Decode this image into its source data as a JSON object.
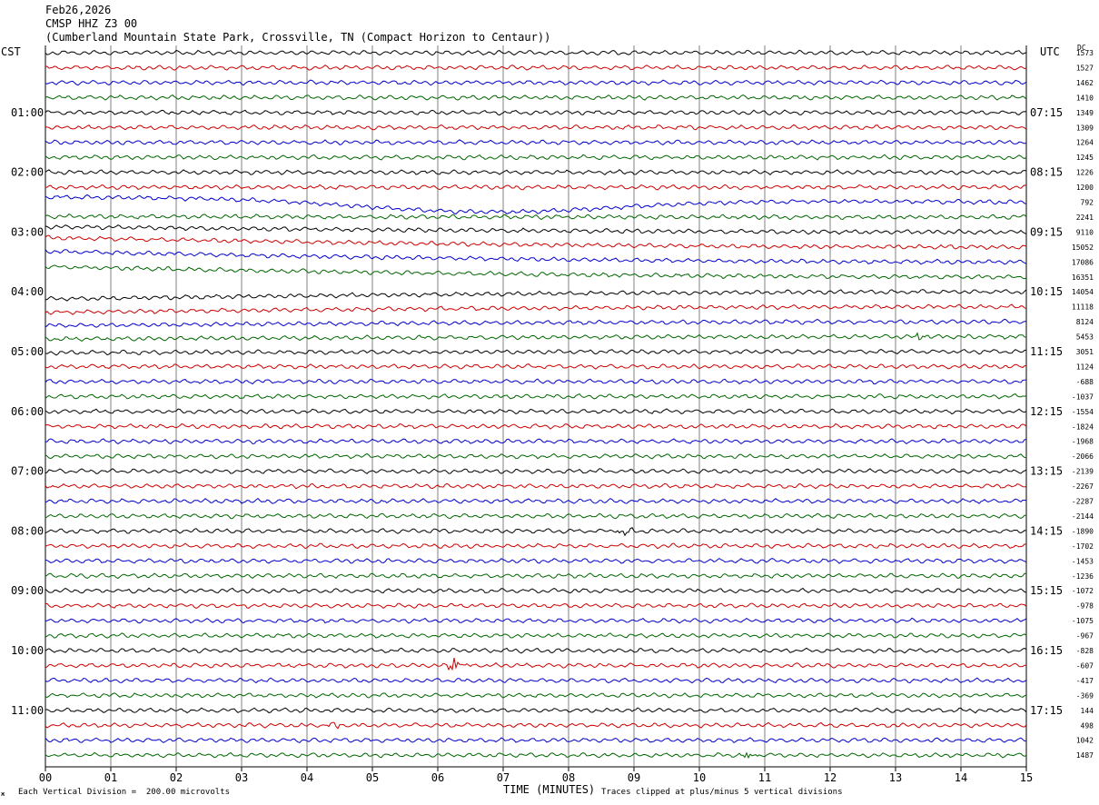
{
  "header": {
    "date": "Feb26,2026",
    "station": "CMSP HHZ Z3 00",
    "location": "(Cumberland Mountain State Park, Crossville, TN (Compact Horizon to Centaur))"
  },
  "labels": {
    "left_zone": "CST",
    "right_zone": "UTC",
    "dc_header": "DC"
  },
  "footer": {
    "scale_note": "Each Vertical Division =  200.00 microvolts",
    "x_axis_title": "TIME (MINUTES)",
    "clip_note": "Traces clipped at plus/minus 5 vertical divisions",
    "logo_mark": "ж"
  },
  "colors": {
    "trace_cycle": [
      "#000000",
      "#cc0000",
      "#0000cc",
      "#006600"
    ],
    "grid": "#808080",
    "axis": "#000000"
  },
  "chart_data": {
    "type": "line",
    "title": "CMSP HHZ Z3 00",
    "xlabel": "TIME (MINUTES)",
    "xlim": [
      0,
      15
    ],
    "x_ticks": [
      "00",
      "01",
      "02",
      "03",
      "04",
      "05",
      "06",
      "07",
      "08",
      "09",
      "10",
      "11",
      "12",
      "13",
      "14",
      "15"
    ],
    "left_hour_labels": [
      "01:00",
      "02:00",
      "03:00",
      "04:00",
      "05:00",
      "06:00",
      "07:00",
      "08:00",
      "09:00",
      "10:00",
      "11:00"
    ],
    "right_hour_labels": [
      "07:15",
      "08:15",
      "09:15",
      "10:15",
      "11:15",
      "12:15",
      "13:15",
      "14:15",
      "15:15",
      "16:15",
      "17:15"
    ],
    "traces_per_hour": 4,
    "trace_count": 48,
    "dc_offsets": [
      1573,
      1527,
      1462,
      1410,
      1349,
      1309,
      1264,
      1245,
      1226,
      1200,
      792,
      2241,
      9110,
      15052,
      17086,
      16351,
      14054,
      11118,
      8124,
      5453,
      3051,
      1124,
      -688,
      -1037,
      -1554,
      -1824,
      -1968,
      -2066,
      -2139,
      -2267,
      -2287,
      -2144,
      -1890,
      -1702,
      -1453,
      -1236,
      -1072,
      -978,
      -1075,
      -967,
      -828,
      -607,
      -417,
      -369,
      144,
      498,
      1042,
      1487
    ],
    "events": [
      {
        "trace": 19,
        "minute": 13.4,
        "label": ""
      },
      {
        "trace": 32,
        "minute": 8.85,
        "label": ""
      },
      {
        "trace": 41,
        "minute": 6.25,
        "label": ""
      },
      {
        "trace": 45,
        "minute": 4.4,
        "label": ""
      },
      {
        "trace": 47,
        "minute": 10.75,
        "label": ""
      }
    ],
    "grid": true,
    "units": "microvolts",
    "vertical_division_microvolts": 200.0
  }
}
